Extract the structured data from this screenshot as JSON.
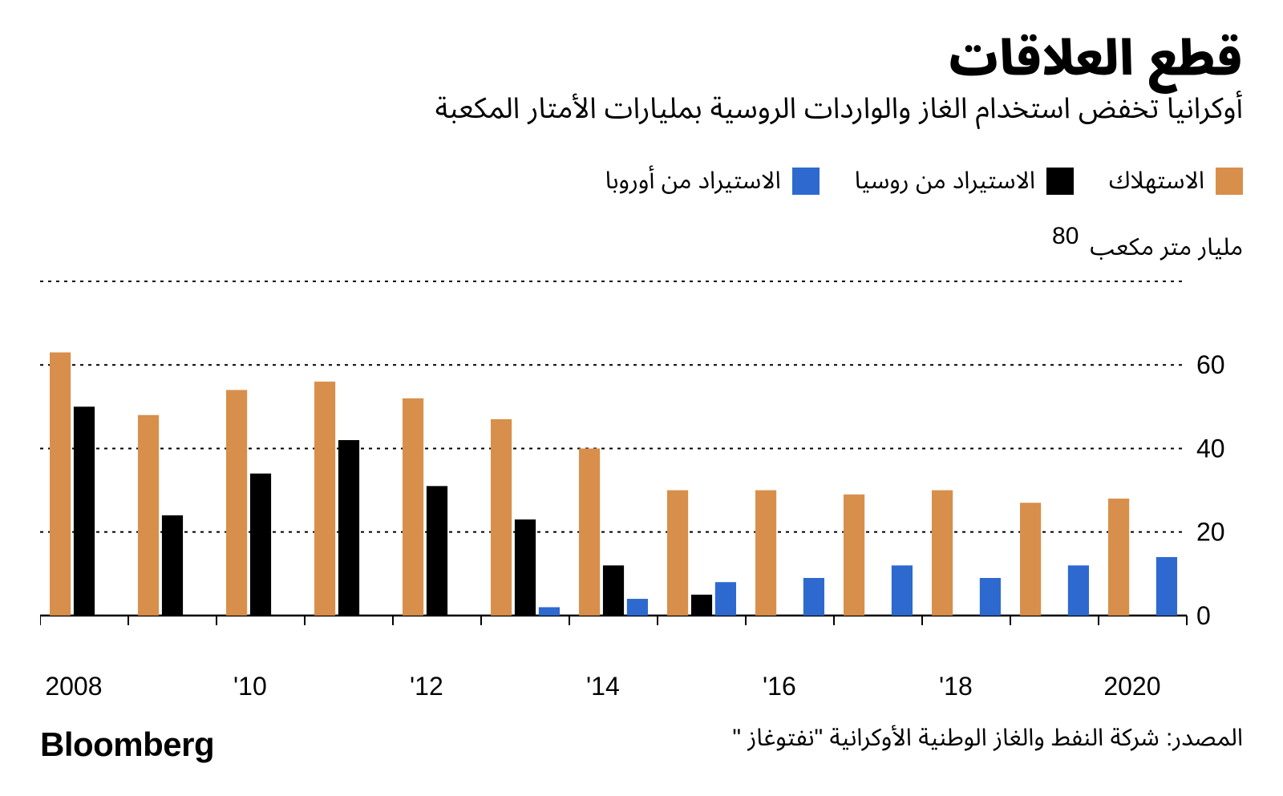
{
  "title": "قطع العلاقات",
  "subtitle": "أوكرانيا تخفض استخدام الغاز والواردات الروسية بمليارات الأمتار المكعبة",
  "brand": "Bloomberg",
  "source": "المصدر: شركة النفط والغاز الوطنية الأوكرانية \"نفتوغاز \"",
  "legend": {
    "consumption": {
      "label": "الاستهلاك",
      "color": "#d88f4b"
    },
    "russia": {
      "label": "الاستيراد من روسيا",
      "color": "#000000"
    },
    "europe": {
      "label": "الاستيراد من أوروبا",
      "color": "#2e69d0"
    }
  },
  "chart": {
    "type": "bar",
    "ylim": [
      -10,
      80
    ],
    "ytick_step": 20,
    "yticks": [
      0,
      20,
      40,
      60,
      80
    ],
    "y_top_label": "80",
    "y_unit_label": "مليار متر مكعب",
    "grid_color": "#000000",
    "grid_dash": "4,6",
    "baseline_color": "#000000",
    "background_color": "#ffffff",
    "bar_group_gap_pct": 0.15,
    "bar_width_rel": 0.28,
    "tick_fontsize": 32,
    "categories": [
      "2008",
      "2009",
      "2010",
      "2011",
      "2012",
      "2013",
      "2014",
      "2015",
      "2016",
      "2017",
      "2018",
      "2019",
      "2020"
    ],
    "x_labels": [
      "2008",
      "",
      "'10",
      "",
      "'12",
      "",
      "'14",
      "",
      "'16",
      "",
      "'18",
      "",
      "2020"
    ],
    "series": [
      {
        "key": "consumption",
        "color": "#d88f4b",
        "values": [
          63,
          48,
          54,
          56,
          52,
          47,
          40,
          30,
          30,
          29,
          30,
          27,
          28
        ]
      },
      {
        "key": "russia",
        "color": "#000000",
        "values": [
          50,
          24,
          34,
          42,
          31,
          23,
          12,
          5,
          0,
          0,
          0,
          0,
          0
        ]
      },
      {
        "key": "europe",
        "color": "#2e69d0",
        "values": [
          0,
          0,
          0,
          0,
          0,
          2,
          4,
          8,
          9,
          12,
          9,
          12,
          14
        ]
      }
    ]
  },
  "colors": {
    "text": "#000000",
    "background": "#ffffff"
  },
  "typography": {
    "title_fontsize": 60,
    "title_weight": 900,
    "subtitle_fontsize": 36,
    "legend_fontsize": 30,
    "axis_fontsize": 32,
    "brand_fontsize": 42,
    "source_fontsize": 30
  }
}
